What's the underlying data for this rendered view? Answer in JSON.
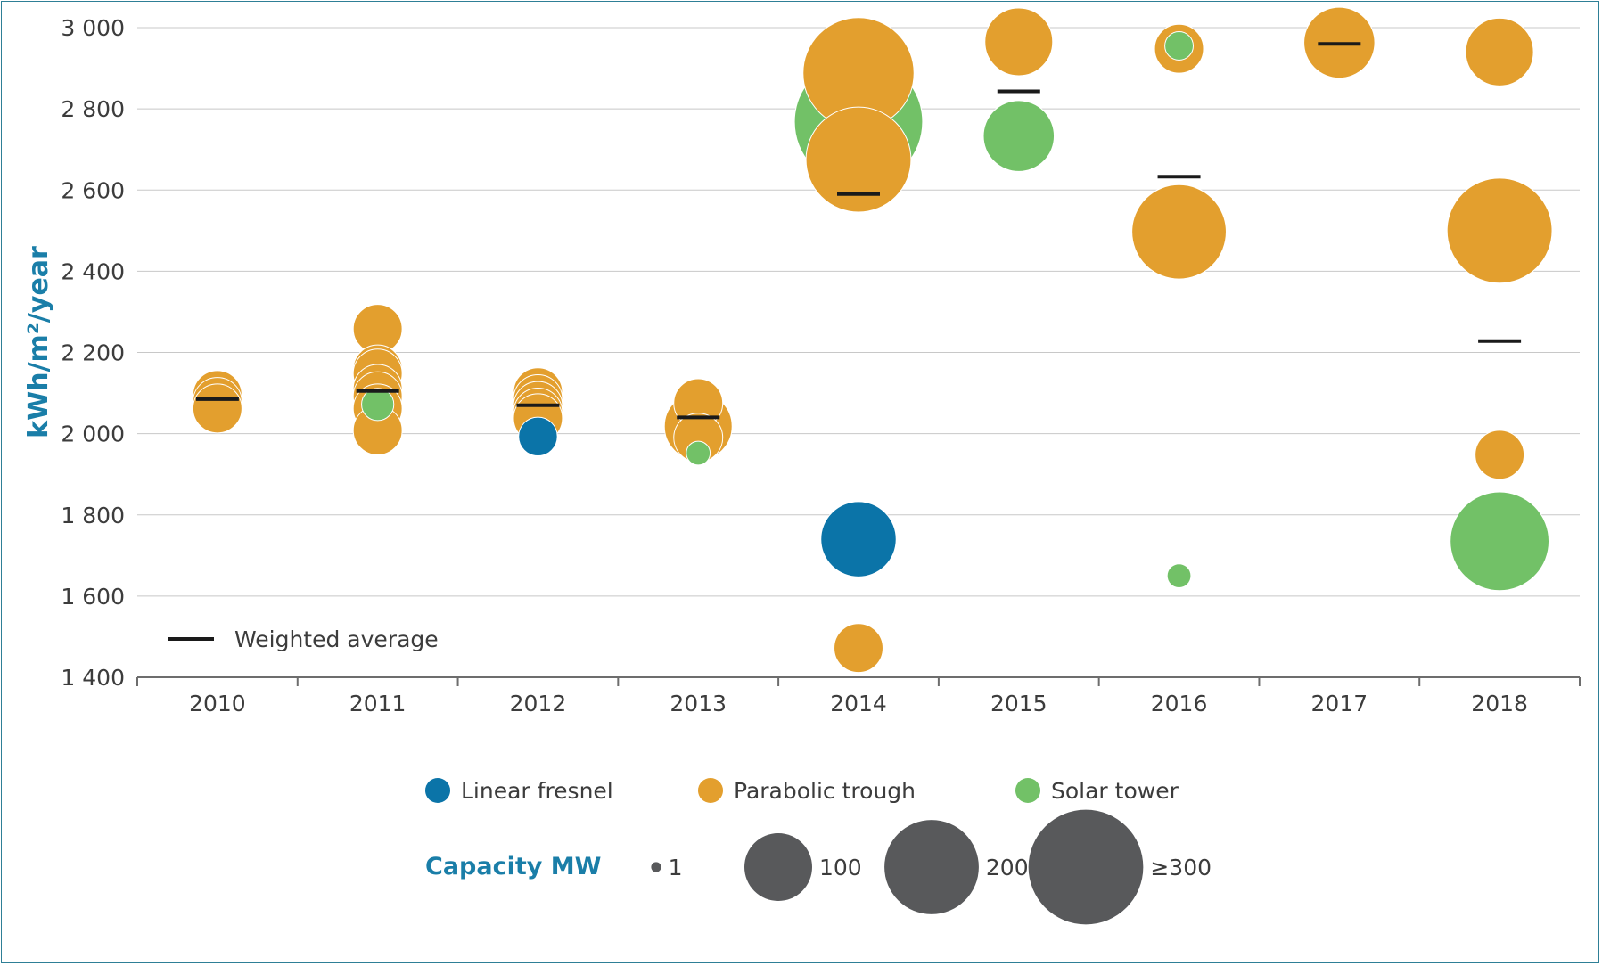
{
  "chart_data": {
    "type": "scatter",
    "title": "",
    "ylabel": "kWh/m²/year",
    "xlabel": "",
    "ylim": [
      1400,
      3000
    ],
    "yticks": [
      1400,
      1600,
      1800,
      2000,
      2200,
      2400,
      2600,
      2800,
      3000
    ],
    "ytick_labels": [
      "1 400",
      "1 600",
      "1 800",
      "2 000",
      "2 200",
      "2 400",
      "2 600",
      "2 800",
      "3 000"
    ],
    "categories": [
      "2010",
      "2011",
      "2012",
      "2013",
      "2014",
      "2015",
      "2016",
      "2017",
      "2018"
    ],
    "grid": true,
    "series": [
      {
        "name": "Linear fresnel",
        "color": "#0b74a8",
        "points": [
          {
            "x": "2012",
            "y": 1993,
            "capacity": 30
          },
          {
            "x": "2014",
            "y": 1740,
            "capacity": 125
          }
        ]
      },
      {
        "name": "Parabolic trough",
        "color": "#e39f2e",
        "points": [
          {
            "x": "2010",
            "y": 2095,
            "capacity": 50
          },
          {
            "x": "2010",
            "y": 2078,
            "capacity": 50
          },
          {
            "x": "2010",
            "y": 2062,
            "capacity": 50
          },
          {
            "x": "2011",
            "y": 2258,
            "capacity": 50
          },
          {
            "x": "2011",
            "y": 2158,
            "capacity": 50
          },
          {
            "x": "2011",
            "y": 2148,
            "capacity": 50
          },
          {
            "x": "2011",
            "y": 2110,
            "capacity": 50
          },
          {
            "x": "2011",
            "y": 2092,
            "capacity": 50
          },
          {
            "x": "2011",
            "y": 2062,
            "capacity": 50
          },
          {
            "x": "2011",
            "y": 2008,
            "capacity": 50
          },
          {
            "x": "2012",
            "y": 2102,
            "capacity": 50
          },
          {
            "x": "2012",
            "y": 2085,
            "capacity": 50
          },
          {
            "x": "2012",
            "y": 2068,
            "capacity": 50
          },
          {
            "x": "2012",
            "y": 2052,
            "capacity": 50
          },
          {
            "x": "2012",
            "y": 2038,
            "capacity": 50
          },
          {
            "x": "2013",
            "y": 2075,
            "capacity": 50
          },
          {
            "x": "2013",
            "y": 2018,
            "capacity": 100
          },
          {
            "x": "2013",
            "y": 1990,
            "capacity": 50
          },
          {
            "x": "2014",
            "y": 2888,
            "capacity": 280
          },
          {
            "x": "2014",
            "y": 2675,
            "capacity": 250
          },
          {
            "x": "2014",
            "y": 1472,
            "capacity": 50
          },
          {
            "x": "2015",
            "y": 2965,
            "capacity": 100
          },
          {
            "x": "2016",
            "y": 2948,
            "capacity": 50
          },
          {
            "x": "2016",
            "y": 2497,
            "capacity": 200
          },
          {
            "x": "2017",
            "y": 2963,
            "capacity": 110
          },
          {
            "x": "2018",
            "y": 2940,
            "capacity": 100
          },
          {
            "x": "2018",
            "y": 2500,
            "capacity": 250
          },
          {
            "x": "2018",
            "y": 1948,
            "capacity": 50
          }
        ]
      },
      {
        "name": "Solar tower",
        "color": "#72c167",
        "points": [
          {
            "x": "2011",
            "y": 2072,
            "capacity": 20
          },
          {
            "x": "2013",
            "y": 1952,
            "capacity": 10
          },
          {
            "x": "2014",
            "y": 2768,
            "capacity": 377
          },
          {
            "x": "2015",
            "y": 2733,
            "capacity": 110
          },
          {
            "x": "2016",
            "y": 2955,
            "capacity": 15
          },
          {
            "x": "2016",
            "y": 1650,
            "capacity": 10
          },
          {
            "x": "2018",
            "y": 1735,
            "capacity": 220
          }
        ]
      }
    ],
    "weighted_average": {
      "name": "Weighted average",
      "color": "#1a1a1a",
      "values": [
        2085,
        2105,
        2070,
        2040,
        2590,
        2843,
        2633,
        2960,
        2228
      ]
    },
    "size_legend": {
      "title": "Capacity MW",
      "entries": [
        {
          "label": "1",
          "capacity": 1
        },
        {
          "label": "100",
          "capacity": 100
        },
        {
          "label": "200",
          "capacity": 200
        },
        {
          "label": "≥300",
          "capacity": 300
        }
      ],
      "color": "#58595b"
    },
    "legend_position": "bottom"
  }
}
